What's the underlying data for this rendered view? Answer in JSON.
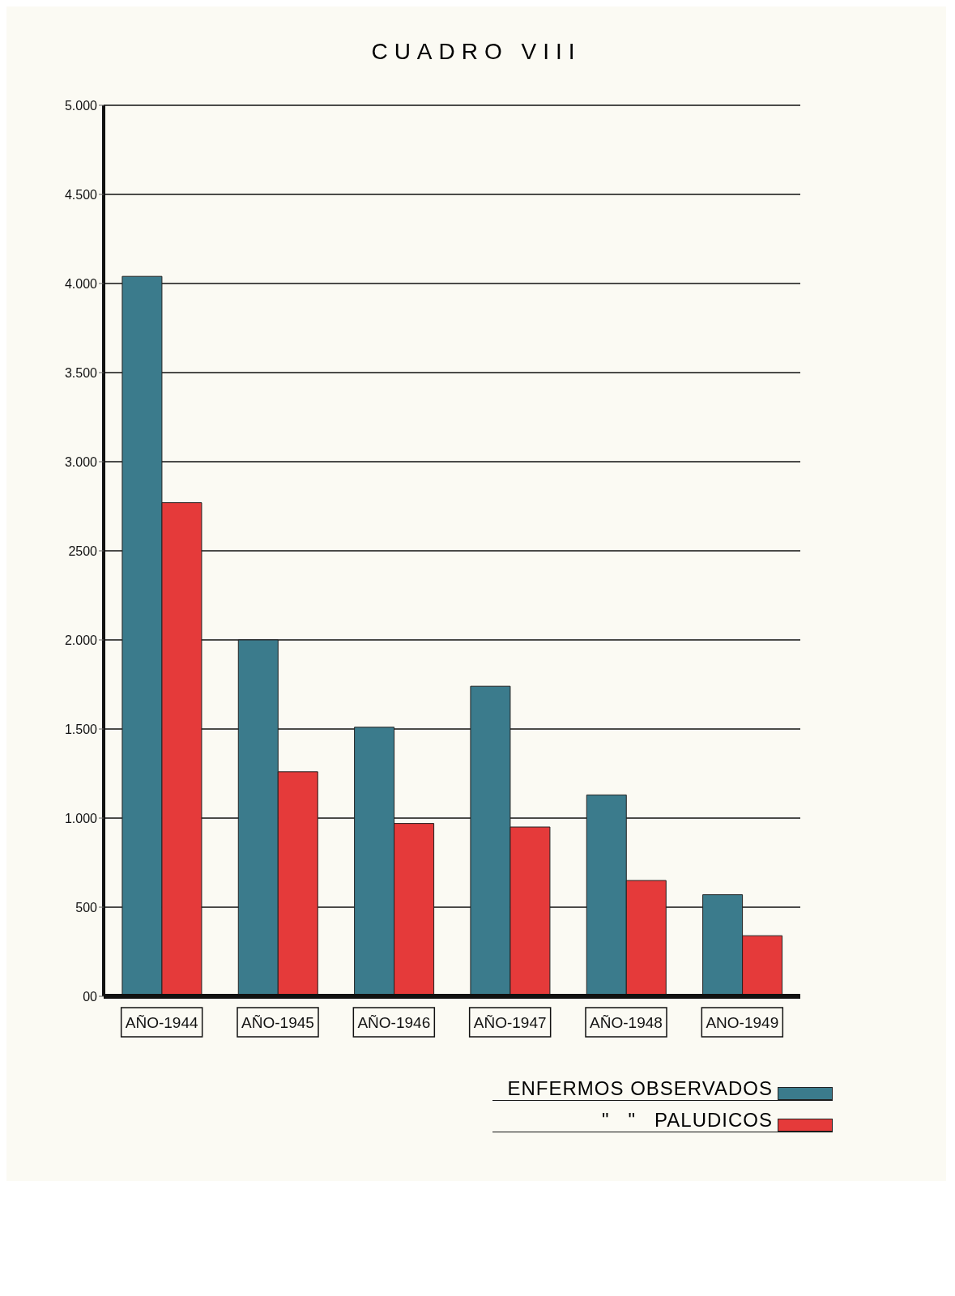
{
  "chart_data": {
    "type": "bar",
    "title": "CUADRO VIII",
    "categories": [
      "AÑO-1944",
      "AÑO-1945",
      "AÑO-1946",
      "AÑO-1947",
      "AÑO-1948",
      "ANO-1949"
    ],
    "series": [
      {
        "name": "ENFERMOS OBSERVADOS",
        "color": "#3b7b8c",
        "values": [
          4040,
          2000,
          1510,
          1740,
          1130,
          570
        ]
      },
      {
        "name": "\"   \"   PALUDICOS",
        "color": "#e53a3a",
        "values": [
          2770,
          1260,
          970,
          950,
          650,
          340
        ]
      }
    ],
    "ylim": [
      0,
      5000
    ],
    "yticks": [
      {
        "value": 0,
        "label": "00"
      },
      500,
      {
        "value": 1000,
        "label": "1.000"
      },
      {
        "value": 1500,
        "label": "1.500"
      },
      {
        "value": 2000,
        "label": "2.000"
      },
      2500,
      {
        "value": 3000,
        "label": "3.000"
      },
      {
        "value": 3500,
        "label": "3.500"
      },
      {
        "value": 4000,
        "label": "4.000"
      },
      {
        "value": 4500,
        "label": "4.500"
      },
      {
        "value": 5000,
        "label": "5.000"
      }
    ],
    "grid": "y",
    "legend": "bottom right"
  }
}
